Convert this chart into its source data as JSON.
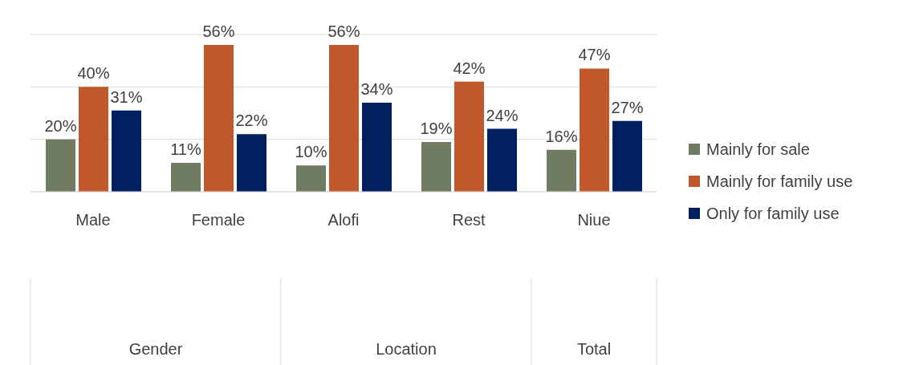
{
  "chart_data": {
    "type": "bar",
    "categories": [
      "Male",
      "Female",
      "Alofi",
      "Rest",
      "Niue"
    ],
    "series": [
      {
        "name": "Mainly for sale",
        "color": "#6f7c61",
        "values": [
          20,
          11,
          10,
          19,
          16
        ],
        "value_labels": [
          "20%",
          "11%",
          "10%",
          "19%",
          "16%"
        ]
      },
      {
        "name": "Mainly for family use",
        "color": "#c0582b",
        "values": [
          40,
          56,
          56,
          42,
          47
        ],
        "value_labels": [
          "40%",
          "56%",
          "56%",
          "42%",
          "47%"
        ]
      },
      {
        "name": "Only for family use",
        "color": "#002060",
        "values": [
          31,
          22,
          34,
          24,
          27
        ],
        "value_labels": [
          "31%",
          "22%",
          "34%",
          "24%",
          "27%"
        ]
      }
    ],
    "annotations": [
      "Gender",
      "Location",
      "Total"
    ],
    "ylim": [
      0,
      60
    ],
    "yticks": [
      0,
      20,
      40,
      60
    ],
    "tick_labels": "x",
    "grid": "y",
    "legend": "right"
  }
}
